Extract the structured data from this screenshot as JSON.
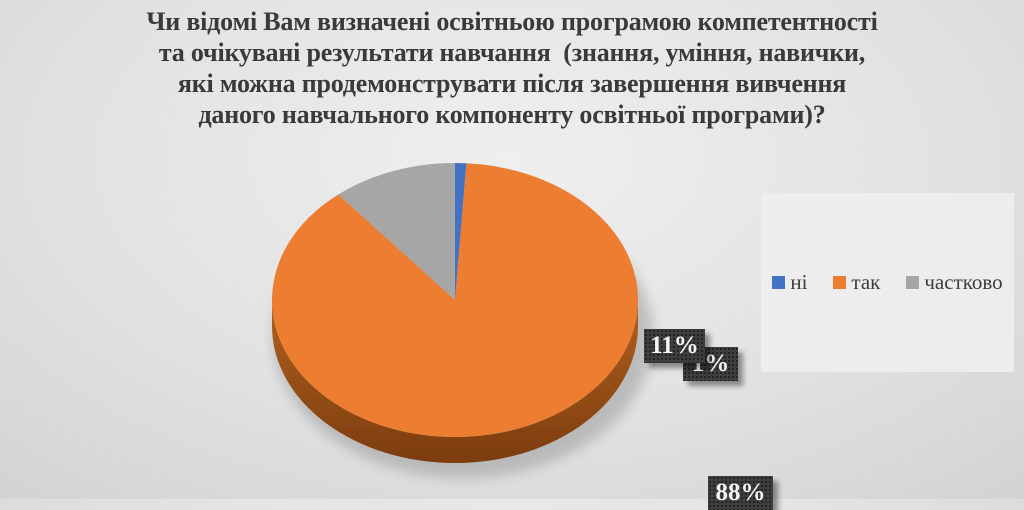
{
  "chart_data": {
    "type": "pie",
    "style": "3d",
    "title": "Чи відомі Вам визначені освітньою програмою компетентності\nта очікувані результати навчання  (знання, уміння, навички,\nякі можна продемонструвати після завершення вивчення\nданого навчального компоненту освітньої програми)?",
    "slices": [
      {
        "label": "ні",
        "value": 1,
        "pct_label": "1%",
        "color": "#4472C4"
      },
      {
        "label": "так",
        "value": 88,
        "pct_label": "88%",
        "color": "#ED7D31"
      },
      {
        "label": "частково",
        "value": 11,
        "pct_label": "11%",
        "color": "#A6A6A6"
      }
    ],
    "start_angle_deg": 0,
    "direction": "clockwise",
    "legend": {
      "position": "right"
    },
    "label_box_color": "#3e3e3e",
    "label_text_color": "#f5f5f5",
    "wall_gradient": [
      "#b2611f",
      "#7c3c0e"
    ]
  }
}
